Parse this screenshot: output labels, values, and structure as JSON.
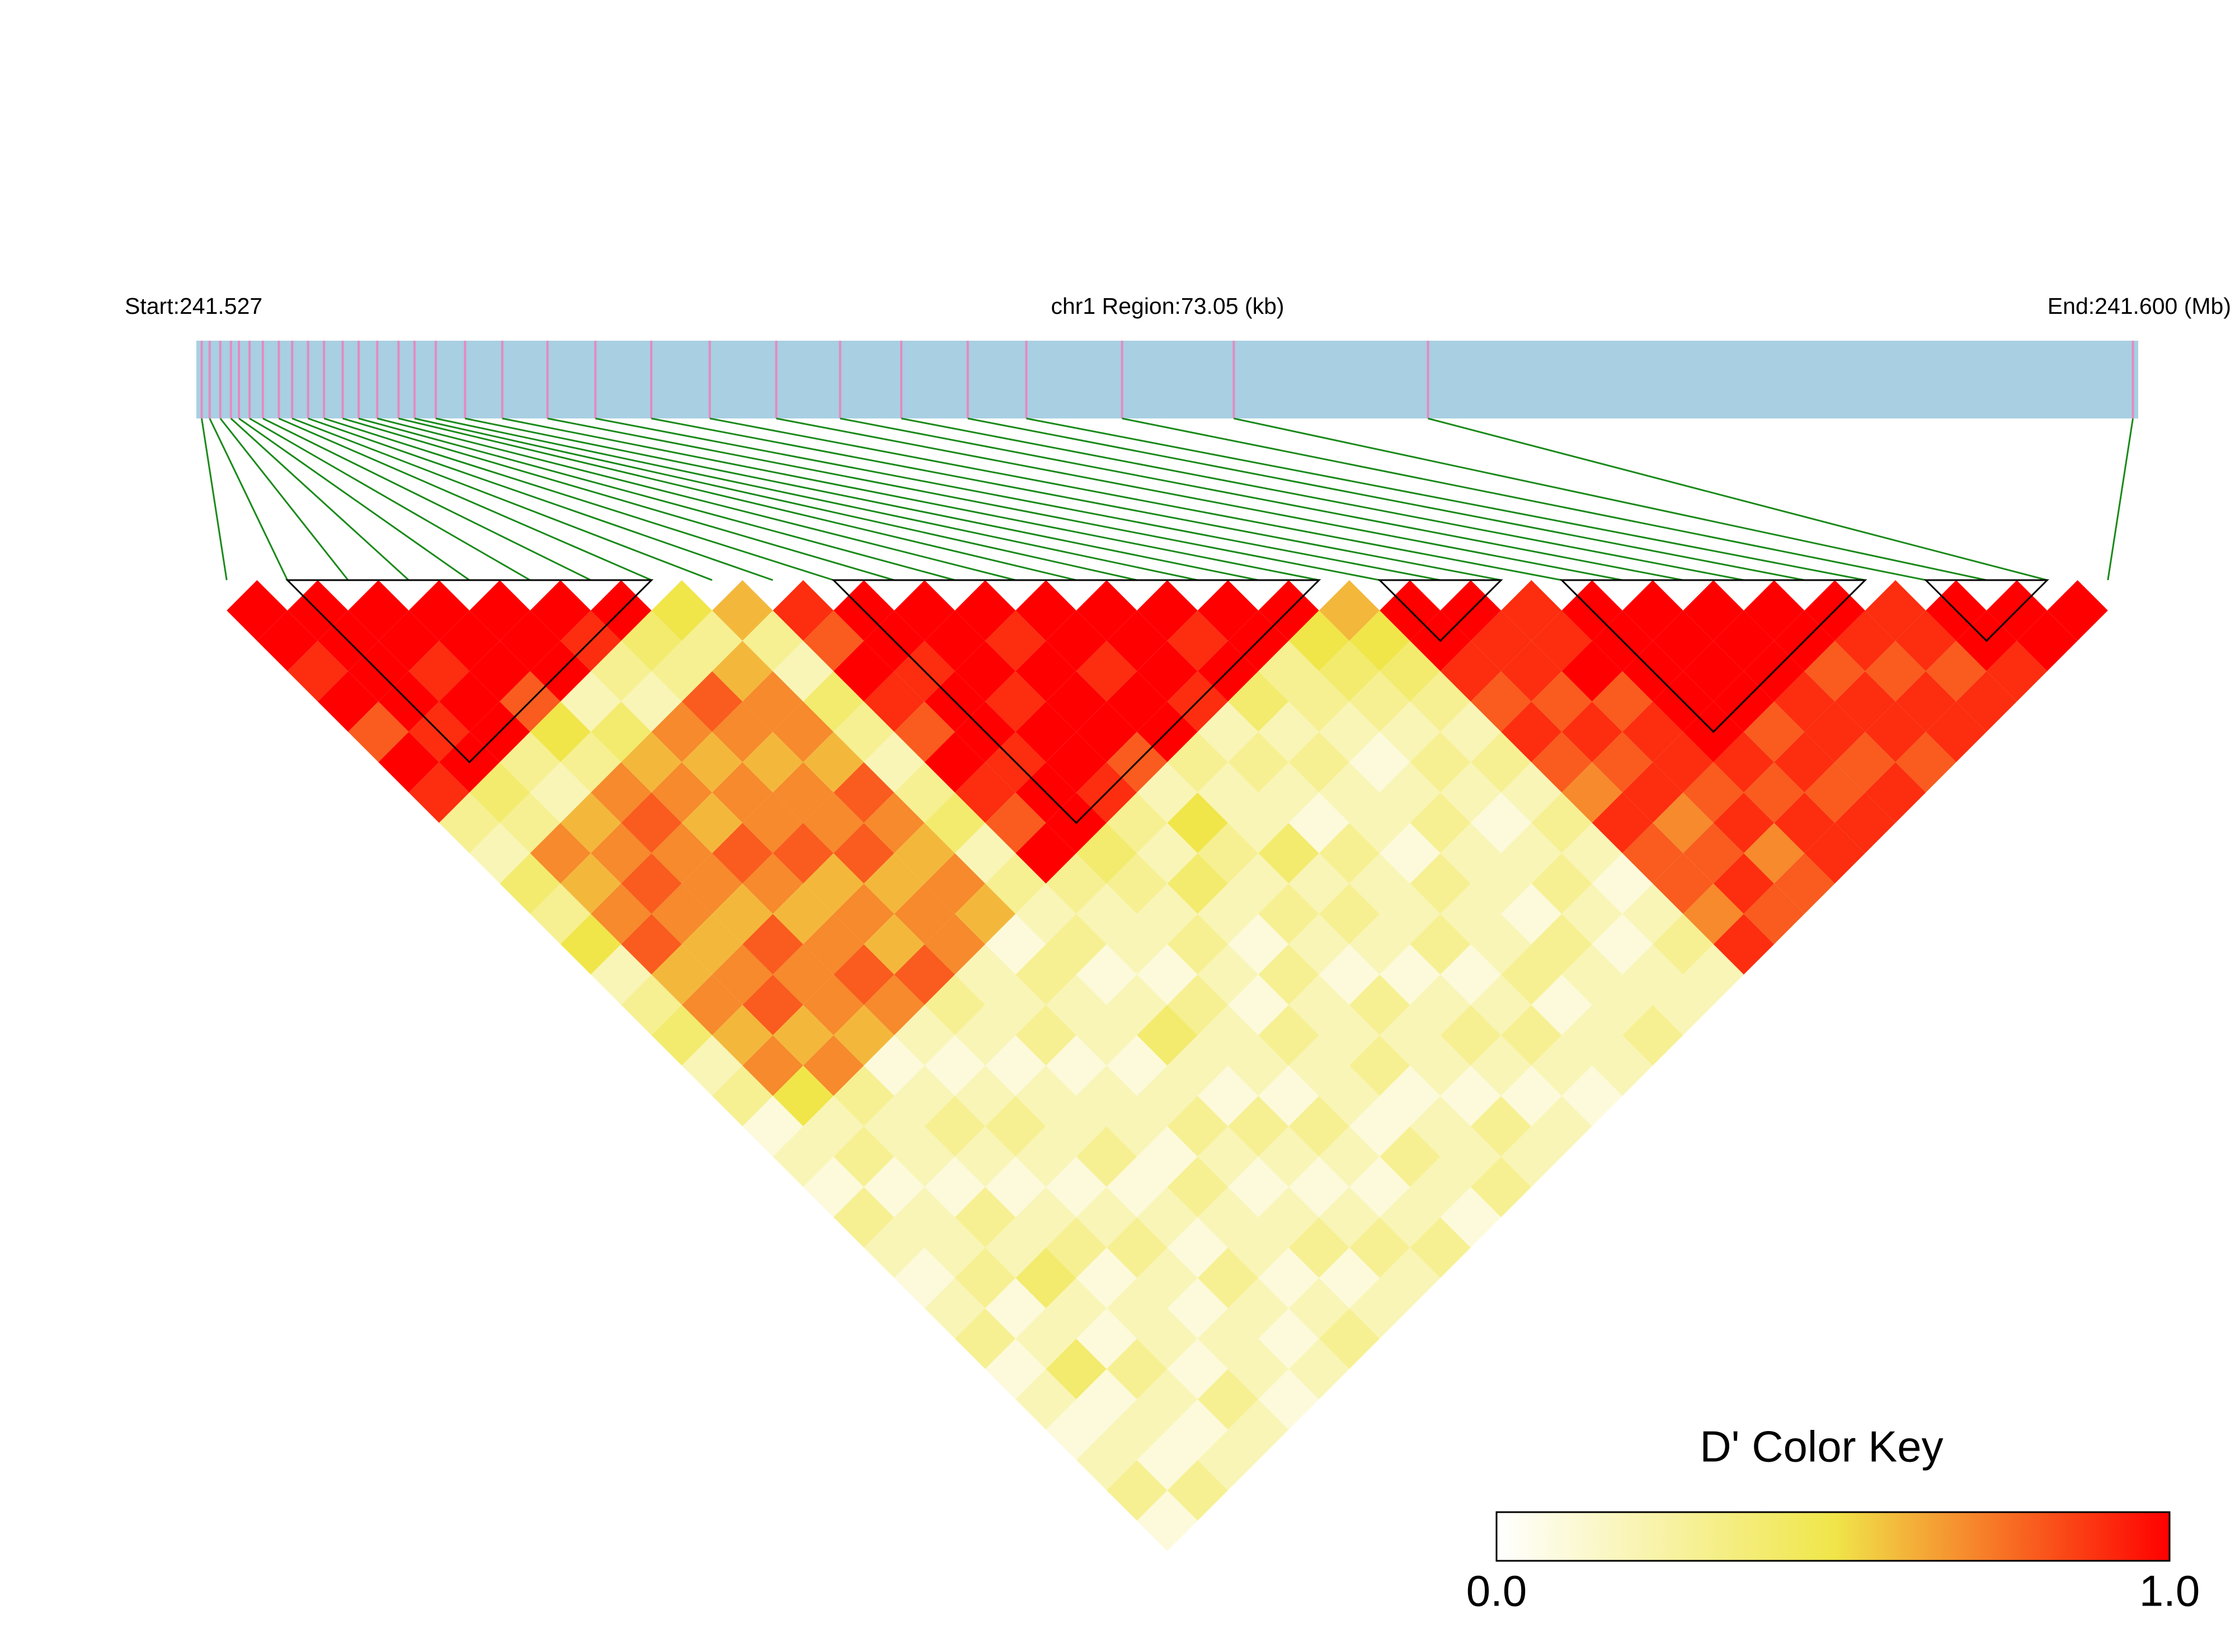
{
  "chart_data": {
    "type": "ld_heatmap",
    "start_label": "Start:241.527",
    "title": "chr1 Region:73.05 (kb)",
    "end_label": "End:241.600 (Mb)",
    "xlim": [
      241.527,
      241.6
    ],
    "positions": [
      241.5272,
      241.5275,
      241.5279,
      241.5283,
      241.5286,
      241.529,
      241.5295,
      241.5301,
      241.5306,
      241.5312,
      241.5318,
      241.5325,
      241.5331,
      241.5338,
      241.5346,
      241.5352,
      241.536,
      241.5371,
      241.5385,
      241.5402,
      241.542,
      241.5441,
      241.5463,
      241.5488,
      241.5512,
      241.5535,
      241.556,
      241.5582,
      241.5618,
      241.566,
      241.5733,
      241.5998
    ],
    "dprime": [
      [
        1,
        1,
        0.9,
        1,
        0.8,
        1,
        0.9,
        0.3,
        0.2,
        0.4,
        0.3,
        0.5,
        0.2,
        0.3,
        0.4,
        0.2,
        0.3,
        0.1,
        0.2,
        0.1,
        0.3,
        0.2,
        0.1,
        0.2,
        0.3,
        0.1,
        0.2,
        0.1,
        0.2,
        0.3,
        0.1
      ],
      [
        1,
        1,
        1,
        1,
        0.9,
        1,
        0.4,
        0.3,
        0.7,
        0.6,
        0.7,
        0.8,
        0.6,
        0.7,
        0.6,
        0.7,
        0.5,
        0.2,
        0.3,
        0.1,
        0.2,
        0.2,
        0.3,
        0.1,
        0.2,
        0.4,
        0.1,
        0.2,
        0.1,
        0.3
      ],
      [
        1,
        1,
        0.9,
        1,
        1,
        0.3,
        0.2,
        0.6,
        0.7,
        0.8,
        0.7,
        0.6,
        0.7,
        0.8,
        0.6,
        0.7,
        0.3,
        0.2,
        0.2,
        0.1,
        0.3,
        0.2,
        0.4,
        0.2,
        0.1,
        0.3,
        0.2,
        0.1,
        0.2
      ],
      [
        1,
        1,
        1,
        0.8,
        0.5,
        0.3,
        0.7,
        0.8,
        0.7,
        0.7,
        0.6,
        0.8,
        0.7,
        0.7,
        0.6,
        0.1,
        0.2,
        0.3,
        0.2,
        0.1,
        0.2,
        0.3,
        0.1,
        0.2,
        0.2,
        0.1,
        0.3,
        0.2
      ],
      [
        1,
        1,
        1,
        0.2,
        0.4,
        0.6,
        0.7,
        0.6,
        0.8,
        0.7,
        0.6,
        0.7,
        0.8,
        0.7,
        0.2,
        0.1,
        0.2,
        0.3,
        0.2,
        0.1,
        0.2,
        0.3,
        0.2,
        0.1,
        0.2,
        0.2,
        0.1
      ],
      [
        1,
        0.9,
        0.3,
        0.2,
        0.7,
        0.6,
        0.7,
        0.7,
        0.8,
        0.6,
        0.7,
        0.6,
        0.8,
        0.3,
        0.2,
        0.1,
        0.2,
        0.2,
        0.3,
        0.1,
        0.2,
        0.1,
        0.3,
        0.2,
        0.1,
        0.2
      ],
      [
        1,
        0.4,
        0.3,
        0.8,
        0.7,
        0.6,
        0.7,
        0.7,
        0.8,
        0.6,
        0.7,
        0.7,
        0.2,
        0.2,
        0.3,
        0.1,
        0.2,
        0.2,
        0.1,
        0.3,
        0.2,
        0.2,
        0.1,
        0.2,
        0.3
      ],
      [
        0.5,
        0.3,
        0.6,
        0.7,
        0.7,
        0.6,
        0.8,
        0.7,
        0.6,
        0.7,
        0.6,
        0.1,
        0.3,
        0.2,
        0.2,
        0.1,
        0.2,
        0.3,
        0.2,
        0.1,
        0.2,
        0.3,
        0.1,
        0.2
      ],
      [
        0.6,
        0.3,
        0.2,
        0.4,
        0.3,
        0.2,
        0.3,
        0.4,
        0.2,
        0.3,
        0.2,
        0.3,
        0.1,
        0.2,
        0.4,
        0.2,
        0.1,
        0.3,
        0.2,
        0.1,
        0.2,
        0.3,
        0.2
      ],
      [
        0.9,
        0.8,
        1,
        0.9,
        0.8,
        1,
        0.9,
        0.8,
        1,
        0.3,
        0.2,
        0.2,
        0.1,
        0.3,
        0.2,
        0.2,
        0.1,
        0.3,
        0.2,
        0.1,
        0.2,
        0.3
      ],
      [
        1,
        1,
        0.9,
        1,
        1,
        0.9,
        1,
        1,
        0.4,
        0.3,
        0.2,
        0.3,
        0.2,
        0.1,
        0.3,
        0.2,
        0.2,
        0.1,
        0.3,
        0.2,
        0.1
      ],
      [
        1,
        1,
        1,
        0.9,
        1,
        1,
        0.9,
        0.3,
        0.2,
        0.4,
        0.2,
        0.1,
        0.3,
        0.2,
        0.2,
        0.3,
        0.1,
        0.2,
        0.2,
        0.3
      ],
      [
        1,
        0.9,
        1,
        1,
        1,
        0.8,
        0.2,
        0.5,
        0.3,
        0.2,
        0.3,
        0.2,
        0.1,
        0.3,
        0.2,
        0.2,
        0.1,
        0.3,
        0.2
      ],
      [
        1,
        1,
        0.9,
        1,
        1,
        0.3,
        0.2,
        0.2,
        0.4,
        0.2,
        0.3,
        0.2,
        0.1,
        0.2,
        0.3,
        0.2,
        0.1,
        0.2
      ],
      [
        1,
        1,
        1,
        0.9,
        0.2,
        0.3,
        0.2,
        0.1,
        0.3,
        0.2,
        0.2,
        0.3,
        0.1,
        0.2,
        0.3,
        0.2,
        0.1
      ],
      [
        1,
        0.9,
        1,
        0.4,
        0.2,
        0.3,
        0.2,
        0.2,
        0.1,
        0.3,
        0.2,
        0.2,
        0.3,
        0.1,
        0.2,
        0.2
      ],
      [
        1,
        1,
        0.3,
        0.3,
        0.2,
        0.1,
        0.2,
        0.3,
        0.2,
        0.2,
        0.1,
        0.3,
        0.2,
        0.2,
        0.3
      ],
      [
        1,
        0.5,
        0.4,
        0.3,
        0.2,
        0.3,
        0.2,
        0.1,
        0.2,
        0.3,
        0.2,
        0.1,
        0.2,
        0.2
      ],
      [
        0.6,
        0.5,
        0.4,
        0.3,
        0.2,
        0.3,
        0.2,
        0.3,
        0.2,
        0.1,
        0.2,
        0.3,
        0.2
      ],
      [
        1,
        1,
        0.9,
        0.8,
        0.9,
        0.8,
        0.7,
        0.9,
        0.8,
        0.8,
        0.7,
        0.9
      ],
      [
        1,
        0.9,
        0.9,
        0.8,
        0.9,
        0.8,
        0.9,
        0.7,
        0.8,
        0.9,
        0.8
      ],
      [
        0.9,
        0.9,
        1,
        0.8,
        0.9,
        0.9,
        0.8,
        0.9,
        0.7,
        0.8
      ],
      [
        1,
        1,
        1,
        1,
        1,
        0.9,
        0.8,
        0.9,
        0.9
      ],
      [
        1,
        1,
        1,
        1,
        0.8,
        0.9,
        0.8,
        0.9
      ],
      [
        1,
        1,
        1,
        0.9,
        0.9,
        0.8,
        0.9
      ],
      [
        1,
        1,
        0.8,
        0.9,
        0.9,
        0.8
      ],
      [
        1,
        0.9,
        0.8,
        0.9,
        0.9
      ],
      [
        0.9,
        0.9,
        0.8,
        0.9
      ],
      [
        1,
        1,
        0.9
      ],
      [
        1,
        1
      ],
      [
        1
      ]
    ],
    "blocks": [
      [
        1,
        7
      ],
      [
        10,
        18
      ],
      [
        19,
        21
      ],
      [
        22,
        27
      ],
      [
        28,
        30
      ]
    ],
    "colors": [
      "#ffffff",
      "#f0e64a",
      "#ff0000"
    ],
    "key_title": "D' Color Key",
    "key_lim": [
      0,
      1
    ],
    "key_ticks": [
      {
        "value": 0,
        "label": "0.0"
      },
      {
        "value": 1,
        "label": "1.0"
      }
    ]
  }
}
